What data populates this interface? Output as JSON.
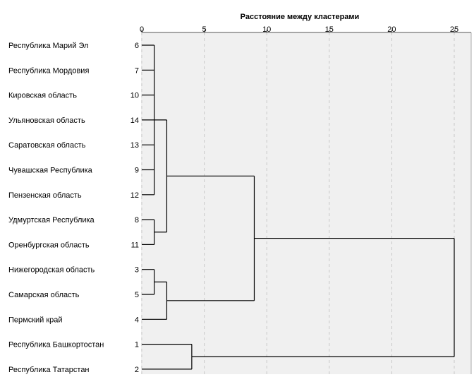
{
  "chart_data": {
    "type": "dendrogram",
    "title": "Расстояние между кластерами",
    "x_ticks": [
      0,
      5,
      10,
      15,
      20,
      25
    ],
    "xlim": [
      0,
      26.5
    ],
    "grid": "vertical dashed",
    "leaves": [
      {
        "label": "Республика Марий Эл",
        "id": "6"
      },
      {
        "label": "Республика Мордовия",
        "id": "7"
      },
      {
        "label": "Кировская область",
        "id": "10"
      },
      {
        "label": "Ульяновская область",
        "id": "14"
      },
      {
        "label": "Саратовская область",
        "id": "13"
      },
      {
        "label": "Чувашская Республика",
        "id": "9"
      },
      {
        "label": "Пензенская область",
        "id": "12"
      },
      {
        "label": "Удмуртская Республика",
        "id": "8"
      },
      {
        "label": "Оренбургская область",
        "id": "11"
      },
      {
        "label": "Нижегородская область",
        "id": "3"
      },
      {
        "label": "Самарская область",
        "id": "5"
      },
      {
        "label": "Пермский край",
        "id": "4"
      },
      {
        "label": "Республика Башкортостан",
        "id": "1"
      },
      {
        "label": "Республика Татарстан",
        "id": "2"
      }
    ],
    "merges": [
      {
        "children": [
          "L0",
          "L1",
          "L2",
          "L3",
          "L4",
          "L5",
          "L6"
        ],
        "distance": 1
      },
      {
        "children": [
          "L7",
          "L8"
        ],
        "distance": 1
      },
      {
        "children": [
          "L9",
          "L10"
        ],
        "distance": 1
      },
      {
        "children": [
          "M0",
          "M1"
        ],
        "distance": 2
      },
      {
        "children": [
          "M2",
          "L11"
        ],
        "distance": 2
      },
      {
        "children": [
          "M3",
          "M4"
        ],
        "distance": 9
      },
      {
        "children": [
          "L12",
          "L13"
        ],
        "distance": 4
      },
      {
        "children": [
          "M5",
          "M6"
        ],
        "distance": 25
      }
    ]
  }
}
